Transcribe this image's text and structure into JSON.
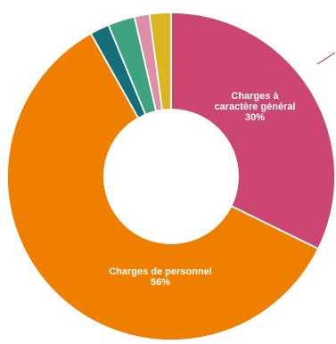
{
  "chart_data": {
    "type": "pie",
    "donut": true,
    "title": "",
    "legend": "none",
    "slices": [
      {
        "label_lines": [
          "Charges à",
          "caractère général"
        ],
        "value_text": "30%",
        "value": 30.5,
        "color": "#cb4670"
      },
      {
        "label_lines": [
          "Charges de personnel"
        ],
        "value_text": "56%",
        "value": 56.3,
        "color": "#ee7f00"
      },
      {
        "label_lines": [],
        "value_text": "",
        "value": 1.8,
        "color": "#156e78"
      },
      {
        "label_lines": [],
        "value_text": "",
        "value": 2.5,
        "color": "#40a37f"
      },
      {
        "label_lines": [],
        "value_text": "",
        "value": 1.4,
        "color": "#dd8fa5"
      },
      {
        "label_lines": [],
        "value_text": "",
        "value": 2.0,
        "color": "#dbb420"
      }
    ]
  }
}
